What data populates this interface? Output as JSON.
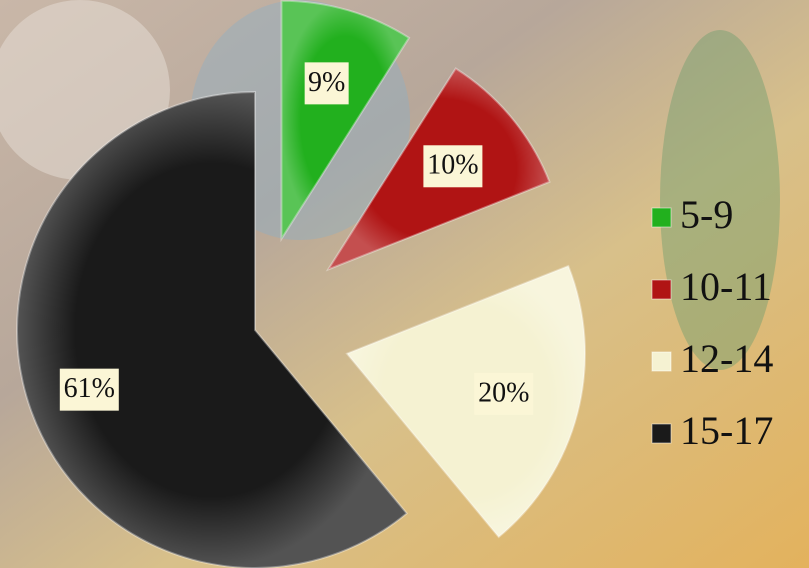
{
  "chart_data": {
    "type": "pie",
    "categories": [
      "5-9",
      "10-11",
      "12-14",
      "15-17"
    ],
    "values": [
      9,
      10,
      20,
      61
    ],
    "value_labels": [
      "9%",
      "10%",
      "20%",
      "61%"
    ],
    "colors": [
      "#22b01e",
      "#b01414",
      "#f5f2d2",
      "#1a1a1a"
    ],
    "legend": "right"
  }
}
